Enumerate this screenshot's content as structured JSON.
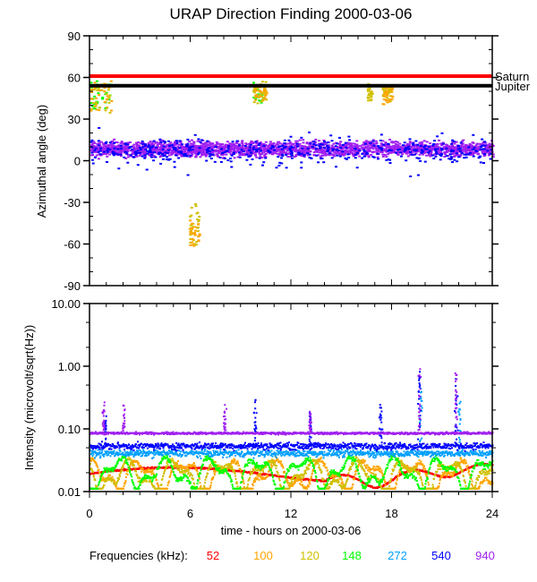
{
  "chart_data": [
    {
      "type": "scatter",
      "title": "URAP Direction Finding  2000-03-06",
      "xlabel": "",
      "ylabel": "Azimuthal angle (deg)",
      "xlim": [
        0,
        24
      ],
      "ylim": [
        -90,
        90
      ],
      "y_ticks": [
        "90",
        "60",
        "30",
        "0",
        "-30",
        "-60",
        "-90"
      ],
      "y_tick_values": [
        90,
        60,
        30,
        0,
        -30,
        -60,
        -90
      ],
      "reference_lines": [
        {
          "name": "Saturn",
          "value": 61,
          "color": "#ff0000"
        },
        {
          "name": "Jupiter",
          "value": 54,
          "color": "#000000"
        }
      ],
      "series": [
        {
          "name": "940",
          "color": "#a020f0",
          "pattern": "band",
          "x_range": [
            0,
            24
          ],
          "y_range": [
            2,
            16
          ]
        },
        {
          "name": "540",
          "color": "#0000ff",
          "pattern": "band",
          "x_range": [
            0,
            24
          ],
          "y_range": [
            -5,
            20
          ]
        },
        {
          "name": "148",
          "color": "#00ff00",
          "pattern": "clusters",
          "clusters": [
            {
              "x": [
                0,
                1.2
              ],
              "y": [
                38,
                58
              ]
            },
            {
              "x": [
                9.7,
                10.4
              ],
              "y": [
                42,
                58
              ]
            }
          ]
        },
        {
          "name": "120",
          "color": "#d0c000",
          "pattern": "clusters",
          "clusters": [
            {
              "x": [
                0,
                1.3
              ],
              "y": [
                35,
                58
              ]
            },
            {
              "x": [
                9.7,
                10.5
              ],
              "y": [
                42,
                58
              ]
            },
            {
              "x": [
                16.5,
                16.8
              ],
              "y": [
                44,
                56
              ]
            },
            {
              "x": [
                17.4,
                17.9
              ],
              "y": [
                43,
                55
              ]
            },
            {
              "x": [
                5.9,
                6.5
              ],
              "y": [
                -63,
                -30
              ]
            }
          ]
        },
        {
          "name": "100",
          "color": "#ffa500",
          "pattern": "clusters",
          "clusters": [
            {
              "x": [
                0,
                1.3
              ],
              "y": [
                36,
                60
              ]
            },
            {
              "x": [
                9.7,
                10.5
              ],
              "y": [
                44,
                56
              ]
            },
            {
              "x": [
                17.4,
                18.0
              ],
              "y": [
                40,
                54
              ]
            },
            {
              "x": [
                5.9,
                6.5
              ],
              "y": [
                -63,
                -40
              ]
            }
          ]
        }
      ]
    },
    {
      "type": "scatter",
      "xlabel": "time - hours on 2000-03-06",
      "ylabel": "Intensity (microvolt/sqrt(Hz))",
      "xlim": [
        0,
        24
      ],
      "ylim": [
        0.01,
        10
      ],
      "yscale": "log",
      "x_ticks": [
        "0",
        "6",
        "12",
        "18",
        "24"
      ],
      "x_tick_values": [
        0,
        6,
        12,
        18,
        24
      ],
      "y_ticks": [
        "10.00",
        "1.00",
        "0.10",
        "0.01"
      ],
      "y_tick_values": [
        10,
        1,
        0.1,
        0.01
      ],
      "series": [
        {
          "name": "940",
          "color": "#a020f0",
          "baseline": 0.088,
          "spikes": [
            [
              0.8,
              0.3
            ],
            [
              2.0,
              0.25
            ],
            [
              8.0,
              0.25
            ],
            [
              13.1,
              0.2
            ],
            [
              19.6,
              1.1
            ],
            [
              21.8,
              0.85
            ]
          ]
        },
        {
          "name": "540",
          "color": "#0000ff",
          "baseline": 0.055,
          "spikes": [
            [
              0.9,
              0.18
            ],
            [
              9.8,
              0.3
            ],
            [
              13.1,
              0.2
            ],
            [
              17.3,
              0.32
            ],
            [
              19.6,
              0.9
            ],
            [
              21.8,
              0.7
            ]
          ]
        },
        {
          "name": "272",
          "color": "#00a0ff",
          "baseline": 0.042,
          "spikes": [
            [
              19.7,
              0.5
            ],
            [
              22.0,
              0.3
            ]
          ]
        },
        {
          "name": "148",
          "color": "#00ff00",
          "baseline": 0.022
        },
        {
          "name": "120",
          "color": "#d0c000",
          "baseline": 0.02
        },
        {
          "name": "100",
          "color": "#ffa500",
          "baseline": 0.02
        },
        {
          "name": "52",
          "color": "#ff0000",
          "baseline": 0.02
        }
      ]
    }
  ],
  "legend": {
    "label": "Frequencies (kHz):",
    "items": [
      {
        "label": "52",
        "color": "#ff0000"
      },
      {
        "label": "100",
        "color": "#ffa500"
      },
      {
        "label": "120",
        "color": "#d0c000"
      },
      {
        "label": "148",
        "color": "#00ff00"
      },
      {
        "label": "272",
        "color": "#00a0ff"
      },
      {
        "label": "540",
        "color": "#0000ff"
      },
      {
        "label": "940",
        "color": "#a020f0"
      }
    ]
  }
}
